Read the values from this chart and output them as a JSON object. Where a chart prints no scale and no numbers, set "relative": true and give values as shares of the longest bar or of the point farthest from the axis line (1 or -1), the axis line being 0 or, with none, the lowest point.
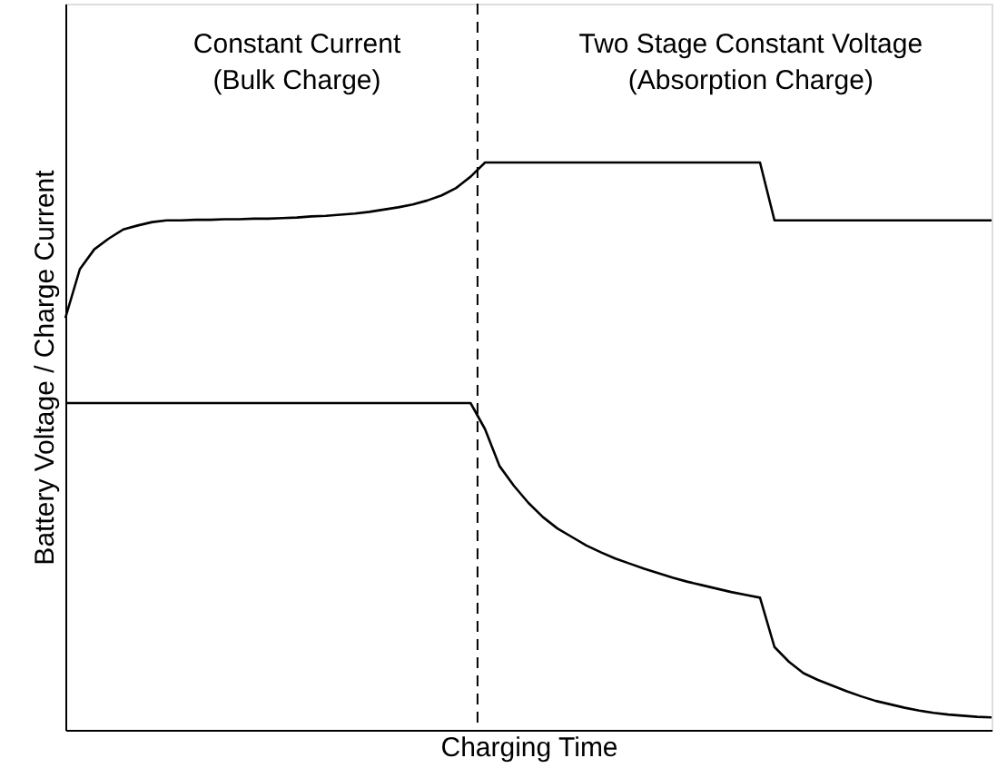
{
  "chart_data": {
    "type": "line",
    "relative": true,
    "xlabel": "Charging Time",
    "ylabel": "Battery Voltage / Charge Current",
    "annotations": [
      "Constant Current",
      "(Bulk Charge)",
      "Two Stage Constant Voltage",
      "(Absorption Charge)"
    ],
    "categories": [
      null,
      null,
      null,
      null,
      null,
      null,
      null,
      null,
      null,
      null,
      null,
      null,
      null,
      null,
      null,
      null,
      null,
      null,
      null,
      null,
      null,
      null,
      null,
      null,
      null,
      null,
      null,
      null,
      null,
      null,
      null,
      null,
      null,
      null,
      null,
      null,
      null,
      null,
      null,
      null,
      null,
      null,
      null,
      null,
      null,
      null,
      null,
      null,
      null,
      null,
      null,
      null,
      null,
      null,
      null,
      null,
      null,
      null,
      null,
      null,
      null,
      null,
      null,
      null,
      null
    ],
    "tick_labels": false,
    "grid": false,
    "legend": false,
    "marker": "none",
    "line_style": "solid",
    "series": [
      {
        "color": "#000000",
        "values": [
          0.726,
          0.812,
          0.847,
          0.866,
          0.882,
          0.889,
          0.895,
          0.898,
          0.898,
          0.899,
          0.899,
          0.9,
          0.9,
          0.901,
          0.901,
          0.902,
          0.903,
          0.905,
          0.906,
          0.908,
          0.91,
          0.913,
          0.917,
          0.921,
          0.926,
          0.933,
          0.942,
          0.955,
          0.975,
          1.0,
          1.0,
          1.0,
          1.0,
          1.0,
          1.0,
          1.0,
          1.0,
          1.0,
          1.0,
          1.0,
          1.0,
          1.0,
          1.0,
          1.0,
          1.0,
          1.0,
          1.0,
          1.0,
          1.0,
          0.898,
          0.898,
          0.898,
          0.898,
          0.898,
          0.898,
          0.898,
          0.898,
          0.898,
          0.898,
          0.898,
          0.898,
          0.898,
          0.898,
          0.898,
          0.898
        ]
      },
      {
        "color": "#000000",
        "values": [
          0.576,
          0.576,
          0.576,
          0.576,
          0.576,
          0.576,
          0.576,
          0.576,
          0.576,
          0.576,
          0.576,
          0.576,
          0.576,
          0.576,
          0.576,
          0.576,
          0.576,
          0.576,
          0.576,
          0.576,
          0.576,
          0.576,
          0.576,
          0.576,
          0.576,
          0.576,
          0.576,
          0.576,
          0.576,
          0.53,
          0.465,
          0.43,
          0.4,
          0.375,
          0.355,
          0.34,
          0.325,
          0.313,
          0.302,
          0.293,
          0.284,
          0.276,
          0.268,
          0.261,
          0.255,
          0.249,
          0.243,
          0.238,
          0.233,
          0.146,
          0.12,
          0.1,
          0.088,
          0.078,
          0.068,
          0.059,
          0.051,
          0.045,
          0.039,
          0.034,
          0.03,
          0.027,
          0.025,
          0.023,
          0.022
        ]
      }
    ]
  }
}
